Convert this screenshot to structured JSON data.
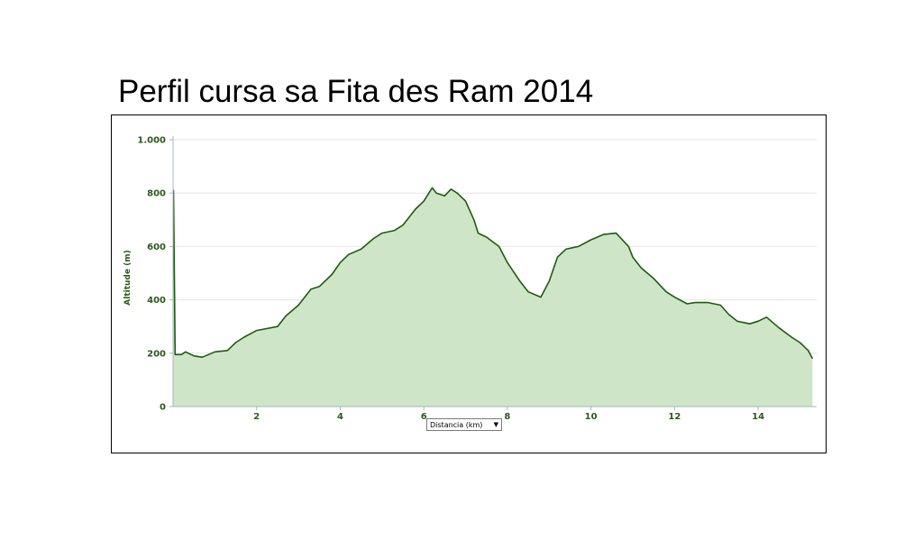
{
  "slide": {
    "title": "Perfil cursa sa Fita des Ram 2014"
  },
  "colors": {
    "line": "#1e5c0f",
    "fill": "#cfe5c7",
    "grid": "#e6e6e6",
    "axis": "#a8b4c0",
    "text": "#2a5a1a"
  },
  "x_selector": {
    "label": "Distancia (km)",
    "arrow": "▼"
  },
  "chart_data": {
    "type": "area",
    "xlabel": "Distancia (km)",
    "ylabel": "Altitude (m)",
    "xlim": [
      0,
      15.4
    ],
    "ylim": [
      0,
      1000
    ],
    "x_ticks": [
      2,
      4,
      6,
      8,
      10,
      12,
      14
    ],
    "x_tick_labels": [
      "2",
      "4",
      "6",
      "8",
      "10",
      "12",
      "14"
    ],
    "y_ticks": [
      0,
      200,
      400,
      600,
      800,
      1000
    ],
    "y_tick_labels": [
      "0",
      "200",
      "400",
      "600",
      "800",
      "1.000"
    ],
    "grid": true,
    "series": [
      {
        "x": [
          0,
          0.01,
          0.05,
          0.2,
          0.3,
          0.5,
          0.7,
          1.0,
          1.3,
          1.5,
          1.7,
          2.0,
          2.5,
          2.7,
          3.0,
          3.3,
          3.5,
          3.8,
          4.0,
          4.2,
          4.5,
          4.8,
          5.0,
          5.3,
          5.5,
          5.8,
          6.0,
          6.2,
          6.3,
          6.5,
          6.65,
          6.8,
          7.0,
          7.2,
          7.3,
          7.5,
          7.8,
          8.0,
          8.3,
          8.5,
          8.8,
          9.0,
          9.2,
          9.4,
          9.7,
          10.0,
          10.3,
          10.6,
          10.9,
          11.0,
          11.2,
          11.5,
          11.8,
          12.0,
          12.3,
          12.5,
          12.8,
          13.1,
          13.3,
          13.5,
          13.8,
          14.0,
          14.2,
          14.5,
          14.8,
          15.0,
          15.2,
          15.3
        ],
        "y": [
          810,
          810,
          195,
          195,
          205,
          190,
          185,
          205,
          210,
          240,
          260,
          285,
          300,
          340,
          380,
          440,
          450,
          495,
          540,
          570,
          590,
          630,
          650,
          660,
          680,
          740,
          770,
          820,
          800,
          790,
          815,
          800,
          770,
          700,
          650,
          635,
          600,
          540,
          470,
          430,
          410,
          470,
          560,
          590,
          600,
          625,
          645,
          650,
          600,
          560,
          520,
          480,
          430,
          410,
          385,
          390,
          390,
          380,
          345,
          320,
          310,
          320,
          335,
          295,
          260,
          240,
          210,
          180
        ]
      }
    ]
  }
}
